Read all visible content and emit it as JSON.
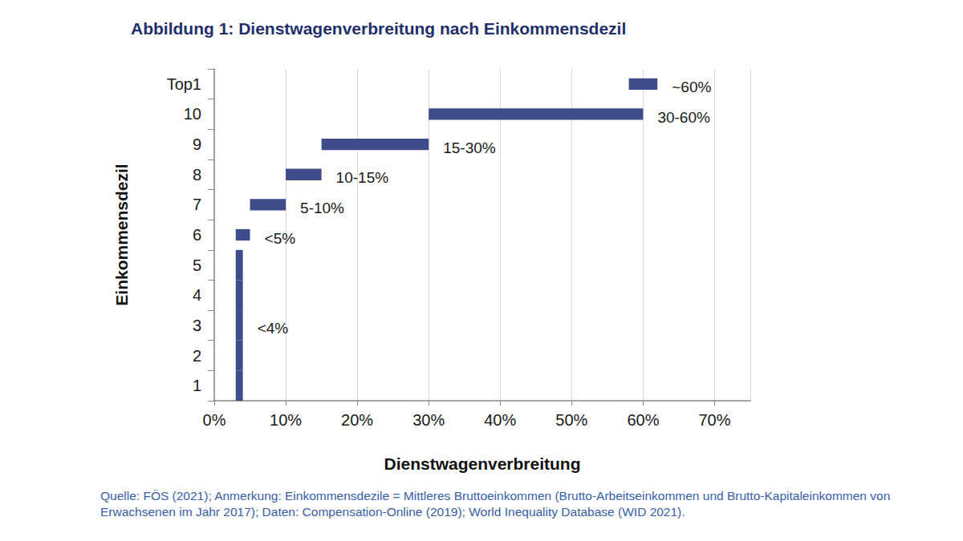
{
  "chart_data": {
    "type": "bar",
    "orientation": "horizontal",
    "title": "Abbildung 1: Dienstwagenverbreitung nach Einkommensdezil",
    "note": "Quelle: FÖS (2021); Anmerkung: Einkommensdezile = Mittleres Bruttoeinkommen (Brutto-Arbeitseinkommen und Brutto-Kapitaleinkommen von Erwachsenen im Jahr 2017); Daten: Compensation-Online (2019); World Inequality Database (WID 2021).",
    "x_label": "Dienstwagenverbreitung",
    "y_label": "Einkommensdezil",
    "categories": [
      "1",
      "2",
      "3",
      "4",
      "5",
      "6",
      "7",
      "8",
      "9",
      "10",
      "Top1"
    ],
    "values": [
      [
        3,
        4
      ],
      [
        3,
        4
      ],
      [
        3,
        4
      ],
      [
        3,
        4
      ],
      [
        3,
        4
      ],
      [
        3,
        5
      ],
      [
        5,
        10
      ],
      [
        10,
        15
      ],
      [
        15,
        30
      ],
      [
        30,
        60
      ],
      [
        58,
        62
      ]
    ],
    "value_labels": [
      null,
      null,
      "<4%",
      null,
      null,
      "<5%",
      "5-10%",
      "10-15%",
      "15-30%",
      "30-60%",
      "~60%"
    ],
    "data_labels": true,
    "color": "#3f4c8a",
    "xlim": [
      0,
      75
    ],
    "xticks": [
      {
        "value": 0,
        "label": "0%"
      },
      {
        "value": 10,
        "label": "10%"
      },
      {
        "value": 20,
        "label": "20%"
      },
      {
        "value": 30,
        "label": "30%"
      },
      {
        "value": 40,
        "label": "40%"
      },
      {
        "value": 50,
        "label": "50%"
      },
      {
        "value": 60,
        "label": "60%"
      },
      {
        "value": 70,
        "label": "70%"
      }
    ],
    "grid": true
  }
}
